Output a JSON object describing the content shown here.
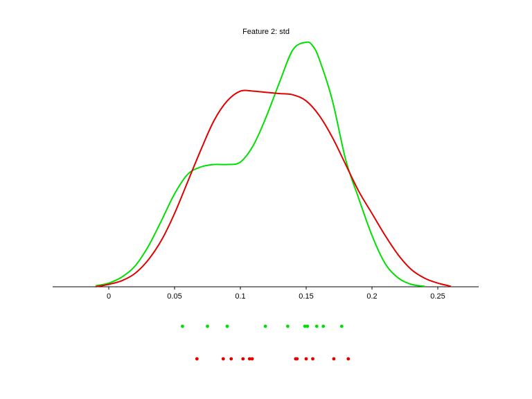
{
  "chart_data": {
    "type": "line",
    "title": "Feature 2: std",
    "xlabel": "",
    "ylabel": "",
    "xlim": [
      -0.04,
      0.28
    ],
    "ylim": [
      0,
      1
    ],
    "grid": false,
    "x_ticks": [
      {
        "value": 0,
        "label": "0"
      },
      {
        "value": 0.05,
        "label": "0.05"
      },
      {
        "value": 0.1,
        "label": "0.1"
      },
      {
        "value": 0.15,
        "label": "0.15"
      },
      {
        "value": 0.2,
        "label": "0.2"
      },
      {
        "value": 0.25,
        "label": "0.25"
      }
    ],
    "series": [
      {
        "color": "#00e000",
        "density": {
          "x": [
            -0.01,
            0.0,
            0.01,
            0.02,
            0.03,
            0.04,
            0.05,
            0.06,
            0.07,
            0.08,
            0.09,
            0.1,
            0.11,
            0.12,
            0.13,
            0.14,
            0.15,
            0.155,
            0.16,
            0.17,
            0.18,
            0.19,
            0.2,
            0.21,
            0.22,
            0.23,
            0.24
          ],
          "y": [
            0.004,
            0.015,
            0.04,
            0.085,
            0.165,
            0.27,
            0.38,
            0.46,
            0.49,
            0.5,
            0.5,
            0.51,
            0.58,
            0.7,
            0.84,
            0.97,
            1.0,
            0.985,
            0.93,
            0.76,
            0.52,
            0.36,
            0.21,
            0.095,
            0.036,
            0.01,
            0.002
          ]
        },
        "samples": [
          0.056,
          0.075,
          0.09,
          0.119,
          0.136,
          0.149,
          0.151,
          0.158,
          0.163,
          0.177
        ]
      },
      {
        "color": "#e00000",
        "density": {
          "x": [
            -0.01,
            0.0,
            0.01,
            0.02,
            0.03,
            0.04,
            0.05,
            0.06,
            0.07,
            0.08,
            0.09,
            0.1,
            0.11,
            0.12,
            0.13,
            0.14,
            0.15,
            0.16,
            0.17,
            0.18,
            0.19,
            0.2,
            0.21,
            0.22,
            0.23,
            0.24,
            0.25,
            0.26
          ],
          "y": [
            0.0,
            0.01,
            0.025,
            0.055,
            0.11,
            0.19,
            0.3,
            0.43,
            0.56,
            0.68,
            0.76,
            0.8,
            0.8,
            0.795,
            0.79,
            0.785,
            0.76,
            0.7,
            0.61,
            0.5,
            0.39,
            0.3,
            0.21,
            0.13,
            0.07,
            0.035,
            0.015,
            0.002
          ]
        },
        "samples": [
          0.067,
          0.087,
          0.093,
          0.102,
          0.107,
          0.109,
          0.142,
          0.143,
          0.15,
          0.155,
          0.171,
          0.182
        ]
      }
    ]
  }
}
